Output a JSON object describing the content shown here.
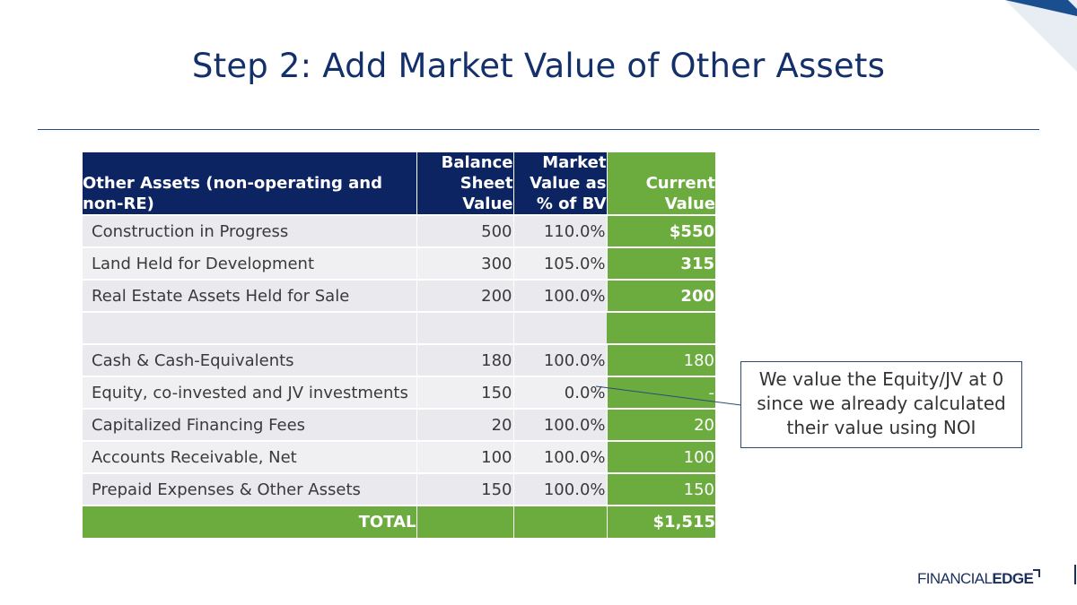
{
  "slide": {
    "title": "Step 2: Add Market Value of Other Assets",
    "accent_color": "#14306a",
    "brand_green": "#6cac3f"
  },
  "table": {
    "headers": {
      "label": "Other Assets (non-operating and non-RE)",
      "bsv": "Balance Sheet Value",
      "mv": "Market Value as % of BV",
      "current": "Current Value"
    },
    "rows": [
      {
        "label": "Construction in Progress",
        "bsv": "500",
        "mv": "110.0%",
        "current": "$550"
      },
      {
        "label": "Land Held for Development",
        "bsv": "300",
        "mv": "105.0%",
        "current": "315"
      },
      {
        "label": "Real Estate Assets Held for Sale",
        "bsv": "200",
        "mv": "100.0%",
        "current": "200"
      },
      {
        "label": "Cash & Cash-Equivalents",
        "bsv": "180",
        "mv": "100.0%",
        "current": "180"
      },
      {
        "label": "Equity, co-invested and JV investments",
        "bsv": "150",
        "mv": "0.0%",
        "current": "-"
      },
      {
        "label": "Capitalized Financing Fees",
        "bsv": "20",
        "mv": "100.0%",
        "current": "20"
      },
      {
        "label": "Accounts Receivable, Net",
        "bsv": "100",
        "mv": "100.0%",
        "current": "100"
      },
      {
        "label": "Prepaid Expenses & Other Assets",
        "bsv": "150",
        "mv": "100.0%",
        "current": "150"
      }
    ],
    "total": {
      "label": "TOTAL",
      "current": "$1,515"
    }
  },
  "callout": {
    "text": "We value the Equity/JV at 0 since we already calculated their value using NOI"
  },
  "logo": {
    "part1": "FINANCIAL",
    "part2": "EDGE"
  }
}
